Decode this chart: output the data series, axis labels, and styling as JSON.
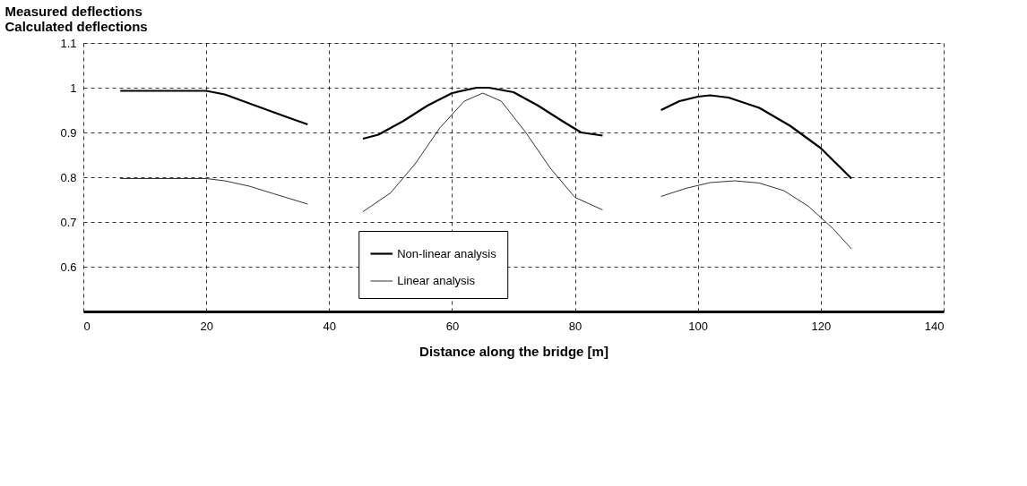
{
  "chart_data": {
    "type": "line",
    "xlabel": "Distance along the bridge [m]",
    "ylabel": "Measured deflections\nCalculated deflections",
    "xlim": [
      0,
      140
    ],
    "xticks": [
      0,
      20,
      40,
      60,
      80,
      100,
      120,
      140
    ],
    "ylim": [
      0.5,
      1.1
    ],
    "yticks": [
      {
        "value": 0.5,
        "label": null
      },
      0.6,
      0.7,
      0.8,
      0.9,
      1,
      1.1
    ],
    "grid": true,
    "legend": "bottom",
    "marker": "none",
    "line_style": "solid",
    "series": [
      {
        "name": "Non-linear analysis",
        "color": "#000000",
        "x": [
          6,
          10,
          15,
          20,
          23,
          26,
          30,
          33,
          36.5,
          40,
          45.5,
          48,
          52,
          56,
          60,
          64,
          66,
          70,
          74,
          78,
          81,
          84.5,
          90,
          94,
          97,
          100,
          102,
          105,
          110,
          115,
          120,
          125
        ],
        "values": [
          0.993,
          0.993,
          0.993,
          0.993,
          0.985,
          0.97,
          0.95,
          0.935,
          0.918,
          null,
          0.886,
          0.895,
          0.925,
          0.96,
          0.988,
          1.0,
          1.0,
          0.99,
          0.96,
          0.925,
          0.9,
          0.893,
          null,
          0.95,
          0.97,
          0.98,
          0.983,
          0.978,
          0.955,
          0.915,
          0.865,
          0.797
        ]
      },
      {
        "name": "Linear analysis",
        "color": "#000000",
        "x": [
          6,
          20,
          23,
          27,
          31,
          36.5,
          40,
          45.5,
          50,
          54,
          58,
          62,
          65,
          68,
          72,
          76,
          80,
          84.5,
          90,
          94,
          98,
          102,
          106,
          110,
          114,
          118,
          122,
          125
        ],
        "values": [
          0.797,
          0.797,
          0.792,
          0.78,
          0.763,
          0.74,
          null,
          0.723,
          0.765,
          0.83,
          0.91,
          0.97,
          0.988,
          0.97,
          0.9,
          0.82,
          0.755,
          0.727,
          null,
          0.757,
          0.775,
          0.788,
          0.792,
          0.787,
          0.77,
          0.735,
          0.685,
          0.64
        ]
      }
    ]
  }
}
